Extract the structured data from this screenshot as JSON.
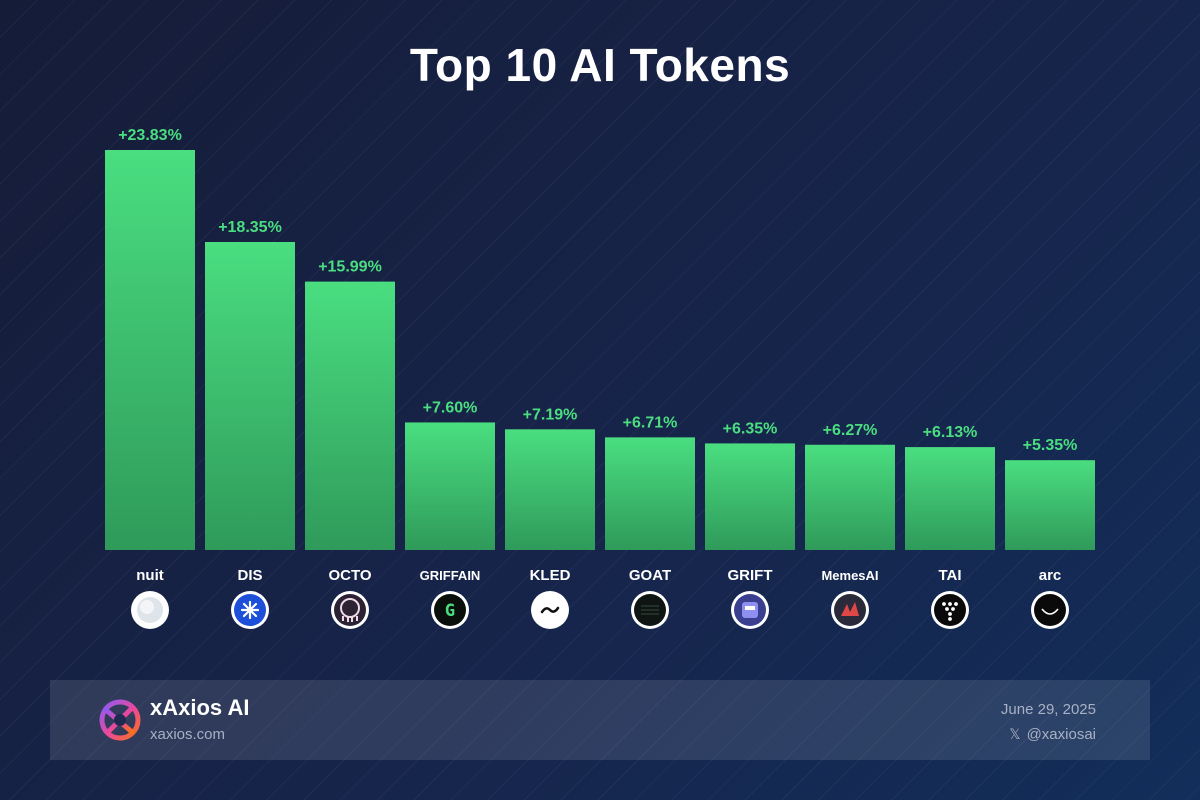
{
  "title": "Top 10 AI Tokens",
  "colors": {
    "bar_top": "#4ade80",
    "bar_bottom": "#2f9a5a",
    "label": "#4ade80",
    "background": "#17244a"
  },
  "chart_data": {
    "type": "bar",
    "title": "Top 10 AI Tokens",
    "xlabel": "",
    "ylabel": "",
    "categories": [
      "nuit",
      "DIS",
      "OCTO",
      "GRIFFAIN",
      "KLED",
      "GOAT",
      "GRIFT",
      "MemesAI",
      "TAI",
      "arc"
    ],
    "values": [
      23.83,
      18.35,
      15.99,
      7.6,
      7.19,
      6.71,
      6.35,
      6.27,
      6.13,
      5.35
    ],
    "value_labels": [
      "+23.83%",
      "+18.35%",
      "+15.99%",
      "+7.60%",
      "+7.19%",
      "+6.71%",
      "+6.35%",
      "+6.27%",
      "+6.13%",
      "+5.35%"
    ],
    "icons": [
      "nuit-token-icon",
      "dis-token-icon",
      "octo-token-icon",
      "griffain-token-icon",
      "kled-token-icon",
      "goat-token-icon",
      "grift-token-icon",
      "memesai-token-icon",
      "tai-token-icon",
      "arc-token-icon"
    ],
    "ylim": [
      0,
      23.83
    ],
    "grid": false,
    "legend": "none"
  },
  "footer": {
    "brand": "xAxios AI",
    "site": "xaxios.com",
    "date": "June 29, 2025",
    "x_icon": "𝕏",
    "handle": "@xaxiosai",
    "logo_icon": "xaxios-logo-icon"
  }
}
